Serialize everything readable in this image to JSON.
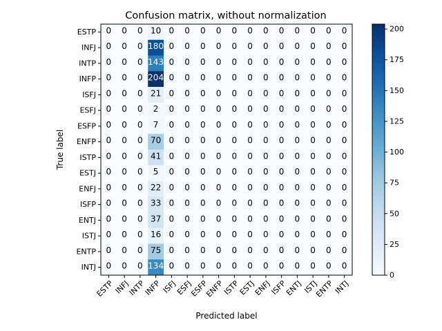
{
  "chart_data": {
    "type": "heatmap",
    "title": "Confusion matrix, without normalization",
    "xlabel": "Predicted label",
    "ylabel": "True label",
    "labels": [
      "ESTP",
      "INFJ",
      "INTP",
      "INFP",
      "ISFJ",
      "ESFJ",
      "ESFP",
      "ENFP",
      "ISTP",
      "ESTJ",
      "ENFJ",
      "ISFP",
      "ENTJ",
      "ISTJ",
      "ENTP",
      "INTJ"
    ],
    "matrix": [
      [
        0,
        0,
        0,
        10,
        0,
        0,
        0,
        0,
        0,
        0,
        0,
        0,
        0,
        0,
        0,
        0
      ],
      [
        0,
        0,
        0,
        180,
        0,
        0,
        0,
        0,
        0,
        0,
        0,
        0,
        0,
        0,
        0,
        0
      ],
      [
        0,
        0,
        0,
        143,
        0,
        0,
        0,
        0,
        0,
        0,
        0,
        0,
        0,
        0,
        0,
        0
      ],
      [
        0,
        0,
        0,
        204,
        0,
        0,
        0,
        0,
        0,
        0,
        0,
        0,
        0,
        0,
        0,
        0
      ],
      [
        0,
        0,
        0,
        21,
        0,
        0,
        0,
        0,
        0,
        0,
        0,
        0,
        0,
        0,
        0,
        0
      ],
      [
        0,
        0,
        0,
        2,
        0,
        0,
        0,
        0,
        0,
        0,
        0,
        0,
        0,
        0,
        0,
        0
      ],
      [
        0,
        0,
        0,
        7,
        0,
        0,
        0,
        0,
        0,
        0,
        0,
        0,
        0,
        0,
        0,
        0
      ],
      [
        0,
        0,
        0,
        70,
        0,
        0,
        0,
        0,
        0,
        0,
        0,
        0,
        0,
        0,
        0,
        0
      ],
      [
        0,
        0,
        0,
        41,
        0,
        0,
        0,
        0,
        0,
        0,
        0,
        0,
        0,
        0,
        0,
        0
      ],
      [
        0,
        0,
        0,
        5,
        0,
        0,
        0,
        0,
        0,
        0,
        0,
        0,
        0,
        0,
        0,
        0
      ],
      [
        0,
        0,
        0,
        22,
        0,
        0,
        0,
        0,
        0,
        0,
        0,
        0,
        0,
        0,
        0,
        0
      ],
      [
        0,
        0,
        0,
        33,
        0,
        0,
        0,
        0,
        0,
        0,
        0,
        0,
        0,
        0,
        0,
        0
      ],
      [
        0,
        0,
        0,
        37,
        0,
        0,
        0,
        0,
        0,
        0,
        0,
        0,
        0,
        0,
        0,
        0
      ],
      [
        0,
        0,
        0,
        16,
        0,
        0,
        0,
        0,
        0,
        0,
        0,
        0,
        0,
        0,
        0,
        0
      ],
      [
        0,
        0,
        0,
        75,
        0,
        0,
        0,
        0,
        0,
        0,
        0,
        0,
        0,
        0,
        0,
        0
      ],
      [
        0,
        0,
        0,
        134,
        0,
        0,
        0,
        0,
        0,
        0,
        0,
        0,
        0,
        0,
        0,
        0
      ]
    ],
    "colormap": "Blues",
    "colorbar": {
      "range": [
        0,
        204
      ],
      "ticks": [
        0,
        25,
        50,
        75,
        100,
        125,
        150,
        175,
        200
      ]
    },
    "grid": false
  }
}
